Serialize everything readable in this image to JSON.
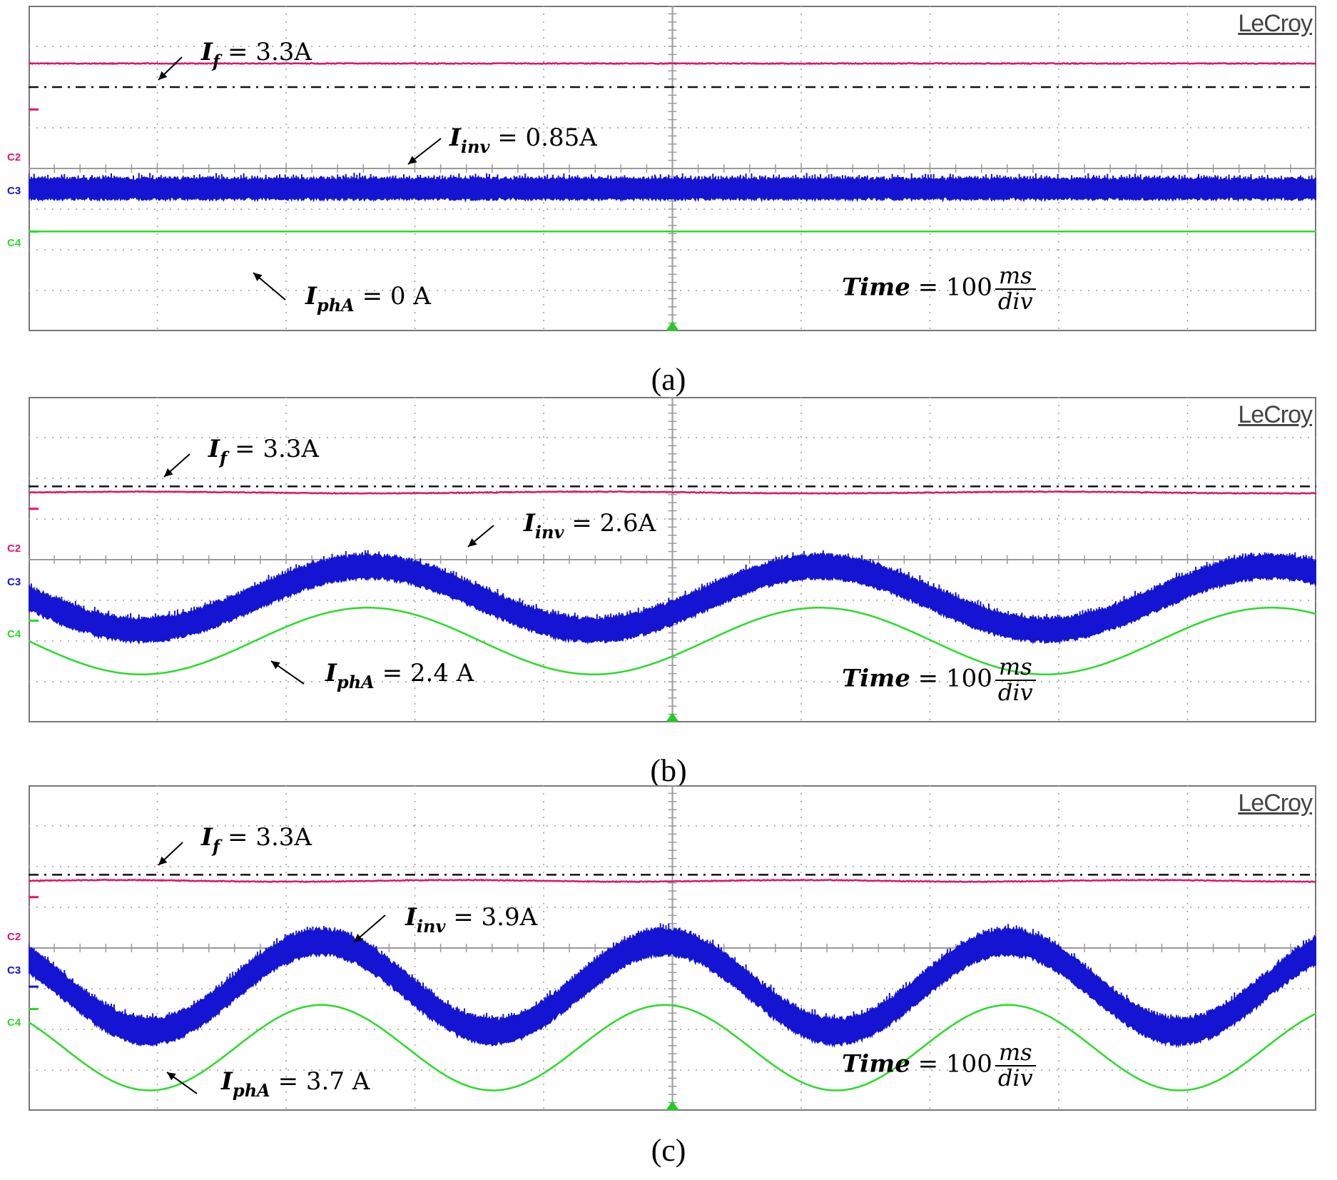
{
  "chart_data": [
    {
      "type": "line",
      "panel_caption": "(a)",
      "brand": "LeCroy",
      "time_div_text": "Time",
      "time_div_value": "= 100",
      "time_div_num": "ms",
      "time_div_den": "div",
      "x_divisions": 10,
      "y_divisions": 8,
      "channels": [
        "C2",
        "C3",
        "C4"
      ],
      "series": [
        {
          "name": "If",
          "label_symbol": "I",
          "label_sub": "f",
          "label_value": "= 3.3A",
          "color": "#e0146c",
          "level_div": 1.42,
          "amplitude_div": 0,
          "cycles": 0,
          "phase": 0,
          "noise_div": 0.02
        },
        {
          "name": "Iinv",
          "label_symbol": "I",
          "label_sub": "inv",
          "label_value": "= 0.85A",
          "color": "#1414d2",
          "level_div": 4.5,
          "amplitude_div": 0.0,
          "cycles": 0,
          "phase": 0,
          "noise_div": 0.28
        },
        {
          "name": "IphA",
          "label_symbol": "I",
          "label_sub": "phA",
          "label_value": "= 0 A",
          "color": "#28dc28",
          "level_div": 5.55,
          "amplitude_div": 0,
          "cycles": 0,
          "phase": 0,
          "noise_div": 0.0
        }
      ]
    },
    {
      "type": "line",
      "panel_caption": "(b)",
      "brand": "LeCroy",
      "time_div_text": "Time",
      "time_div_value": "= 100",
      "time_div_num": "ms",
      "time_div_den": "div",
      "x_divisions": 10,
      "y_divisions": 8,
      "channels": [
        "C2",
        "C3",
        "C4"
      ],
      "series": [
        {
          "name": "If",
          "label_symbol": "I",
          "label_sub": "f",
          "label_value": "= 3.3A",
          "color": "#e0146c",
          "level_div": 2.35,
          "amplitude_div": 0.02,
          "cycles": 2.85,
          "phase": 0,
          "noise_div": 0.02
        },
        {
          "name": "Iinv",
          "label_symbol": "I",
          "label_sub": "inv",
          "label_value": "= 2.6A",
          "color": "#1414d2",
          "level_div": 4.95,
          "amplitude_div": 0.78,
          "cycles": 2.85,
          "phase": 3.14,
          "noise_div": 0.32
        },
        {
          "name": "IphA",
          "label_symbol": "I",
          "label_sub": "phA",
          "label_value": "= 2.4 A",
          "color": "#28dc28",
          "level_div": 6.0,
          "amplitude_div": 0.82,
          "cycles": 2.85,
          "phase": 3.14,
          "noise_div": 0.0
        }
      ]
    },
    {
      "type": "line",
      "panel_caption": "(c)",
      "brand": "LeCroy",
      "time_div_text": "Time",
      "time_div_value": "= 100",
      "time_div_num": "ms",
      "time_div_den": "div",
      "x_divisions": 10,
      "y_divisions": 8,
      "channels": [
        "C2",
        "C3",
        "C4"
      ],
      "series": [
        {
          "name": "If",
          "label_symbol": "I",
          "label_sub": "f",
          "label_value": "= 3.3A",
          "color": "#e0146c",
          "level_div": 2.35,
          "amplitude_div": 0.02,
          "cycles": 3.75,
          "phase": 0,
          "noise_div": 0.02
        },
        {
          "name": "Iinv",
          "label_symbol": "I",
          "label_sub": "inv",
          "label_value": "= 3.9A",
          "color": "#1414d2",
          "level_div": 4.95,
          "amplitude_div": 1.1,
          "cycles": 3.75,
          "phase": 2.5,
          "noise_div": 0.35
        },
        {
          "name": "IphA",
          "label_symbol": "I",
          "label_sub": "phA",
          "label_value": "= 3.7 A",
          "color": "#28dc28",
          "level_div": 6.45,
          "amplitude_div": 1.05,
          "cycles": 3.75,
          "phase": 2.5,
          "noise_div": 0.0
        }
      ]
    }
  ]
}
